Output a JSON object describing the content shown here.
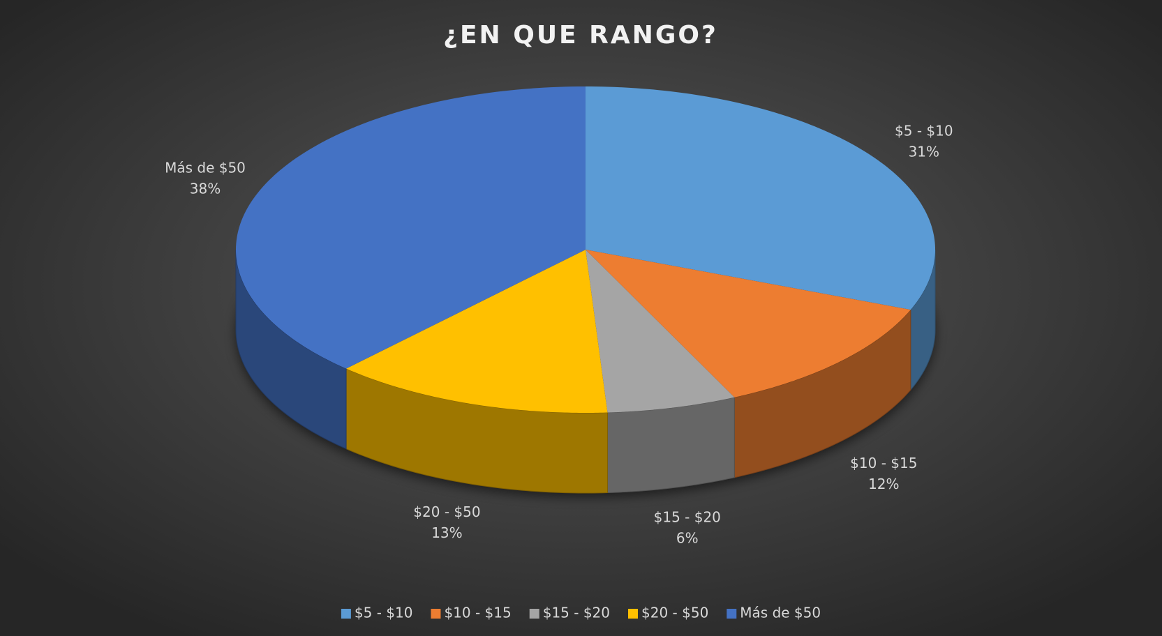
{
  "chart_data": {
    "type": "pie",
    "title": "¿EN QUE RANGO?",
    "categories": [
      "$5 - $10",
      "$10 - $15",
      "$15 - $20",
      "$20 - $50",
      "Más de $50"
    ],
    "values": [
      31,
      12,
      6,
      13,
      38
    ],
    "value_labels": [
      "31%",
      "12%",
      "6%",
      "13%",
      "38%"
    ],
    "colors": [
      "#5b9bd5",
      "#ed7d31",
      "#a5a5a5",
      "#ffc000",
      "#4472c4"
    ],
    "legend": "bottom"
  }
}
